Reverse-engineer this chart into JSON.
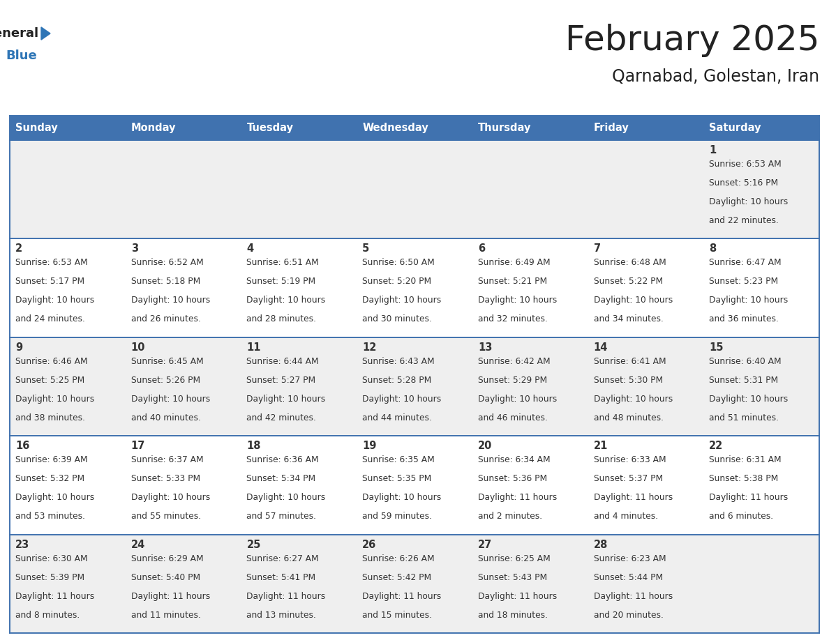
{
  "title": "February 2025",
  "subtitle": "Qarnabad, Golestan, Iran",
  "days_of_week": [
    "Sunday",
    "Monday",
    "Tuesday",
    "Wednesday",
    "Thursday",
    "Friday",
    "Saturday"
  ],
  "header_bg": "#4072AF",
  "header_text": "#FFFFFF",
  "cell_bg_row0": "#EFEFEF",
  "cell_bg_row1": "#FFFFFF",
  "cell_bg_row2": "#EFEFEF",
  "cell_bg_row3": "#FFFFFF",
  "cell_bg_row4": "#EFEFEF",
  "line_color": "#4072AF",
  "text_color": "#333333",
  "title_color": "#222222",
  "logo_general_color": "#222222",
  "logo_blue_color": "#2E75B6",
  "calendar_data": [
    {
      "day": 1,
      "col": 6,
      "row": 0,
      "sunrise": "6:53 AM",
      "sunset": "5:16 PM",
      "daylight": "10 hours and 22 minutes."
    },
    {
      "day": 2,
      "col": 0,
      "row": 1,
      "sunrise": "6:53 AM",
      "sunset": "5:17 PM",
      "daylight": "10 hours and 24 minutes."
    },
    {
      "day": 3,
      "col": 1,
      "row": 1,
      "sunrise": "6:52 AM",
      "sunset": "5:18 PM",
      "daylight": "10 hours and 26 minutes."
    },
    {
      "day": 4,
      "col": 2,
      "row": 1,
      "sunrise": "6:51 AM",
      "sunset": "5:19 PM",
      "daylight": "10 hours and 28 minutes."
    },
    {
      "day": 5,
      "col": 3,
      "row": 1,
      "sunrise": "6:50 AM",
      "sunset": "5:20 PM",
      "daylight": "10 hours and 30 minutes."
    },
    {
      "day": 6,
      "col": 4,
      "row": 1,
      "sunrise": "6:49 AM",
      "sunset": "5:21 PM",
      "daylight": "10 hours and 32 minutes."
    },
    {
      "day": 7,
      "col": 5,
      "row": 1,
      "sunrise": "6:48 AM",
      "sunset": "5:22 PM",
      "daylight": "10 hours and 34 minutes."
    },
    {
      "day": 8,
      "col": 6,
      "row": 1,
      "sunrise": "6:47 AM",
      "sunset": "5:23 PM",
      "daylight": "10 hours and 36 minutes."
    },
    {
      "day": 9,
      "col": 0,
      "row": 2,
      "sunrise": "6:46 AM",
      "sunset": "5:25 PM",
      "daylight": "10 hours and 38 minutes."
    },
    {
      "day": 10,
      "col": 1,
      "row": 2,
      "sunrise": "6:45 AM",
      "sunset": "5:26 PM",
      "daylight": "10 hours and 40 minutes."
    },
    {
      "day": 11,
      "col": 2,
      "row": 2,
      "sunrise": "6:44 AM",
      "sunset": "5:27 PM",
      "daylight": "10 hours and 42 minutes."
    },
    {
      "day": 12,
      "col": 3,
      "row": 2,
      "sunrise": "6:43 AM",
      "sunset": "5:28 PM",
      "daylight": "10 hours and 44 minutes."
    },
    {
      "day": 13,
      "col": 4,
      "row": 2,
      "sunrise": "6:42 AM",
      "sunset": "5:29 PM",
      "daylight": "10 hours and 46 minutes."
    },
    {
      "day": 14,
      "col": 5,
      "row": 2,
      "sunrise": "6:41 AM",
      "sunset": "5:30 PM",
      "daylight": "10 hours and 48 minutes."
    },
    {
      "day": 15,
      "col": 6,
      "row": 2,
      "sunrise": "6:40 AM",
      "sunset": "5:31 PM",
      "daylight": "10 hours and 51 minutes."
    },
    {
      "day": 16,
      "col": 0,
      "row": 3,
      "sunrise": "6:39 AM",
      "sunset": "5:32 PM",
      "daylight": "10 hours and 53 minutes."
    },
    {
      "day": 17,
      "col": 1,
      "row": 3,
      "sunrise": "6:37 AM",
      "sunset": "5:33 PM",
      "daylight": "10 hours and 55 minutes."
    },
    {
      "day": 18,
      "col": 2,
      "row": 3,
      "sunrise": "6:36 AM",
      "sunset": "5:34 PM",
      "daylight": "10 hours and 57 minutes."
    },
    {
      "day": 19,
      "col": 3,
      "row": 3,
      "sunrise": "6:35 AM",
      "sunset": "5:35 PM",
      "daylight": "10 hours and 59 minutes."
    },
    {
      "day": 20,
      "col": 4,
      "row": 3,
      "sunrise": "6:34 AM",
      "sunset": "5:36 PM",
      "daylight": "11 hours and 2 minutes."
    },
    {
      "day": 21,
      "col": 5,
      "row": 3,
      "sunrise": "6:33 AM",
      "sunset": "5:37 PM",
      "daylight": "11 hours and 4 minutes."
    },
    {
      "day": 22,
      "col": 6,
      "row": 3,
      "sunrise": "6:31 AM",
      "sunset": "5:38 PM",
      "daylight": "11 hours and 6 minutes."
    },
    {
      "day": 23,
      "col": 0,
      "row": 4,
      "sunrise": "6:30 AM",
      "sunset": "5:39 PM",
      "daylight": "11 hours and 8 minutes."
    },
    {
      "day": 24,
      "col": 1,
      "row": 4,
      "sunrise": "6:29 AM",
      "sunset": "5:40 PM",
      "daylight": "11 hours and 11 minutes."
    },
    {
      "day": 25,
      "col": 2,
      "row": 4,
      "sunrise": "6:27 AM",
      "sunset": "5:41 PM",
      "daylight": "11 hours and 13 minutes."
    },
    {
      "day": 26,
      "col": 3,
      "row": 4,
      "sunrise": "6:26 AM",
      "sunset": "5:42 PM",
      "daylight": "11 hours and 15 minutes."
    },
    {
      "day": 27,
      "col": 4,
      "row": 4,
      "sunrise": "6:25 AM",
      "sunset": "5:43 PM",
      "daylight": "11 hours and 18 minutes."
    },
    {
      "day": 28,
      "col": 5,
      "row": 4,
      "sunrise": "6:23 AM",
      "sunset": "5:44 PM",
      "daylight": "11 hours and 20 minutes."
    }
  ]
}
